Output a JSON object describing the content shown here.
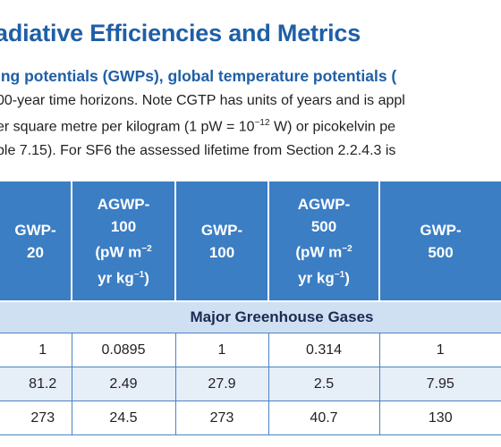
{
  "header": {
    "title": "adiative Efficiencies and Metrics",
    "caption_lead": "ing potentials (GWPs), global temperature potentials (",
    "caption_lines": [
      "00-year time horizons. Note CGTP has units of years and is appl",
      "er square metre per kilogram (1 pW = 10",
      "ble 7.15). For SF6 the assessed lifetime from Section 2.2.4.3 is"
    ],
    "caption_exp": "−12",
    "caption_line2_tail": " W) or picokelvin pe"
  },
  "table": {
    "columns": [
      {
        "l1": "GWP-",
        "l2": "20",
        "l3": "",
        "l4": ""
      },
      {
        "l1": "AGWP-",
        "l2": "100",
        "l3": "(pW m",
        "l3_sup": "−2",
        "l4": "yr kg",
        "l4_sup": "−1",
        "l4_tail": ")"
      },
      {
        "l1": "GWP-",
        "l2": "100",
        "l3": "",
        "l4": ""
      },
      {
        "l1": "AGWP-",
        "l2": "500",
        "l3": "(pW m",
        "l3_sup": "−2",
        "l4": "yr kg",
        "l4_sup": "−1",
        "l4_tail": ")"
      },
      {
        "l1": "GWP-",
        "l2": "500",
        "l3": "",
        "l4": ""
      }
    ],
    "section_label": "Major Greenhouse Gases",
    "rows": [
      [
        "1",
        "0.0895",
        "1",
        "0.314",
        "1"
      ],
      [
        "81.2",
        "2.49",
        "27.9",
        "2.5",
        "7.95"
      ],
      [
        "273",
        "24.5",
        "273",
        "40.7",
        "130"
      ]
    ]
  }
}
